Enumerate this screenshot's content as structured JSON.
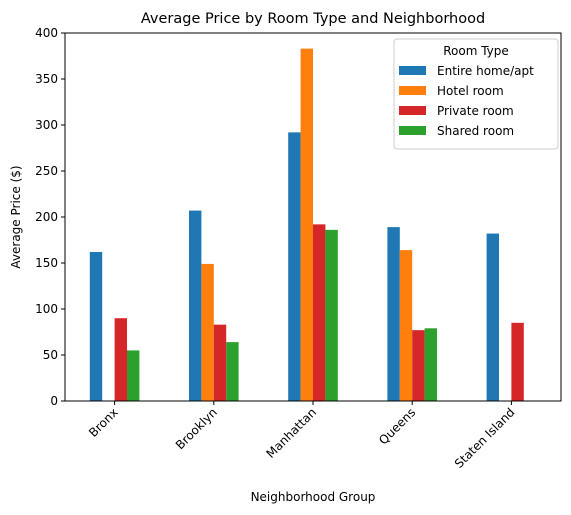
{
  "chart_data": {
    "type": "bar",
    "title": "Average Price by Room Type and Neighborhood",
    "xlabel": "Neighborhood Group",
    "ylabel": "Average Price ($)",
    "categories": [
      "Bronx",
      "Brooklyn",
      "Manhattan",
      "Queens",
      "Staten Island"
    ],
    "series": [
      {
        "name": "Entire home/apt",
        "color": "#1f77b4",
        "values": [
          162,
          207,
          292,
          189,
          182
        ]
      },
      {
        "name": "Hotel room",
        "color": "#ff7f0e",
        "values": [
          null,
          149,
          383,
          164,
          null
        ]
      },
      {
        "name": "Private room",
        "color": "#d62728",
        "values": [
          90,
          83,
          192,
          77,
          85
        ]
      },
      {
        "name": "Shared room",
        "color": "#2ca02c",
        "values": [
          55,
          64,
          186,
          79,
          null
        ]
      }
    ],
    "ylim": [
      0,
      400
    ],
    "yticks": [
      "0",
      "50",
      "100",
      "150",
      "200",
      "250",
      "300",
      "350",
      "400"
    ],
    "grid": false,
    "legend": {
      "title": "Room Type",
      "placement": "top-right"
    }
  }
}
